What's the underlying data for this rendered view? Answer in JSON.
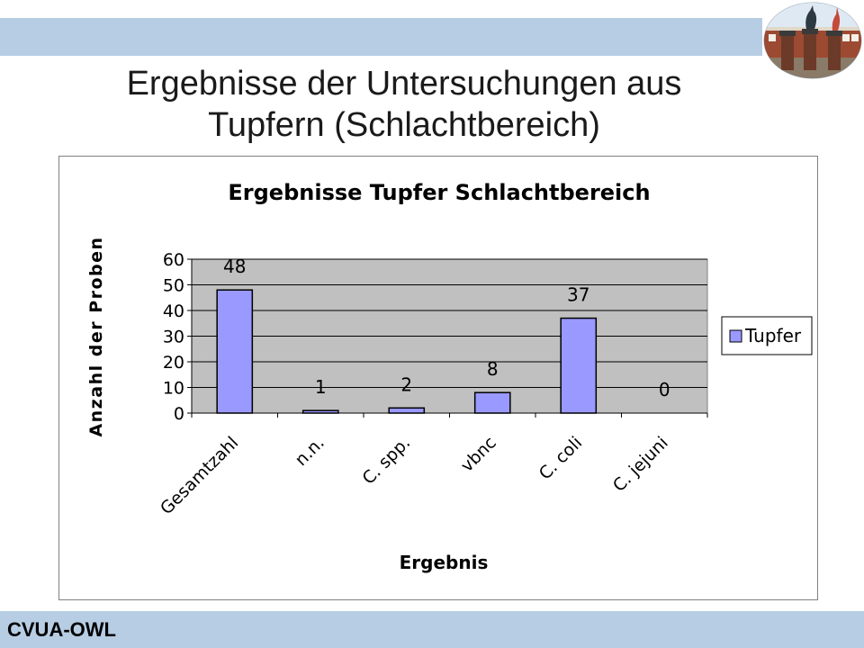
{
  "slide": {
    "title_line1": "Ergebnisse der Untersuchungen aus",
    "title_line2": "Tupfern (Schlachtbereich)",
    "footer": "CVUA-OWL"
  },
  "colors": {
    "band": "#b7cde4",
    "plot_bg": "#c0c0c0",
    "bar": "#9999ff"
  },
  "chart_data": {
    "type": "bar",
    "title": "Ergebnisse Tupfer Schlachtbereich",
    "xlabel": "Ergebnis",
    "ylabel": "Anzahl der Proben",
    "categories": [
      "Gesamtzahl",
      "n.n.",
      "C. spp.",
      "vbnc",
      "C. coli",
      "C. jejuni"
    ],
    "series": [
      {
        "name": "Tupfer",
        "values": [
          48,
          1,
          2,
          8,
          37,
          0
        ]
      }
    ],
    "data_labels": [
      "48",
      "1",
      "2",
      "8",
      "37",
      "0"
    ],
    "ylim": [
      0,
      60
    ],
    "yticks": [
      "0",
      "10",
      "20",
      "30",
      "40",
      "50",
      "60"
    ],
    "grid": true,
    "legend": "right"
  }
}
